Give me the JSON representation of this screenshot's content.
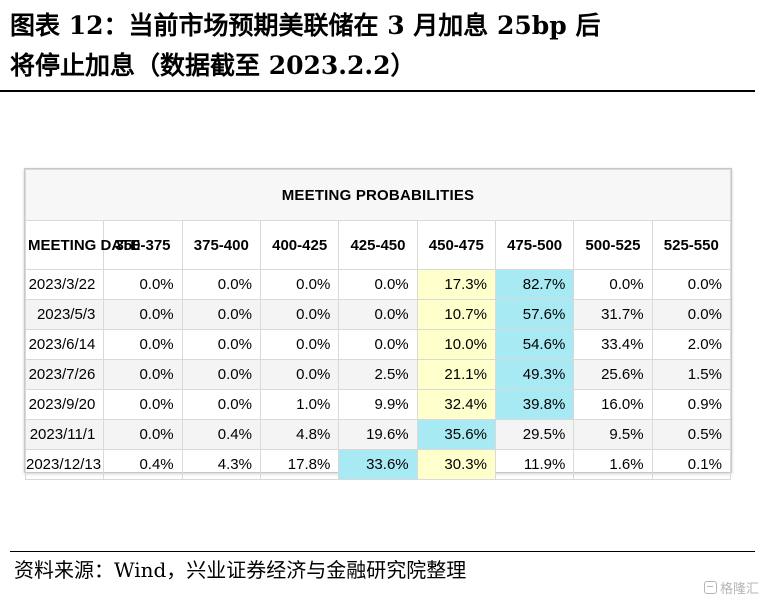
{
  "figure": {
    "title_line1": "图表 12：当前市场预期美联储在 3 月加息 25bp 后",
    "title_line2": "将停止加息（数据截至 2023.2.2）",
    "source": "资料来源：Wind，兴业证券经济与金融研究院整理",
    "watermark": "格隆汇"
  },
  "table": {
    "caption": "MEETING PROBABILITIES",
    "date_header": "MEETING DATE",
    "columns": [
      "350-375",
      "375-400",
      "400-425",
      "425-450",
      "450-475",
      "475-500",
      "500-525",
      "525-550"
    ],
    "rows": [
      {
        "date": "2023/3/22",
        "values": [
          "0.0%",
          "0.0%",
          "0.0%",
          "0.0%",
          "17.3%",
          "82.7%",
          "0.0%",
          "0.0%"
        ],
        "highlight": {
          "yellow": 4,
          "blue": 5
        }
      },
      {
        "date": "2023/5/3",
        "values": [
          "0.0%",
          "0.0%",
          "0.0%",
          "0.0%",
          "10.7%",
          "57.6%",
          "31.7%",
          "0.0%"
        ],
        "highlight": {
          "yellow": 4,
          "blue": 5
        }
      },
      {
        "date": "2023/6/14",
        "values": [
          "0.0%",
          "0.0%",
          "0.0%",
          "0.0%",
          "10.0%",
          "54.6%",
          "33.4%",
          "2.0%"
        ],
        "highlight": {
          "yellow": 4,
          "blue": 5
        }
      },
      {
        "date": "2023/7/26",
        "values": [
          "0.0%",
          "0.0%",
          "0.0%",
          "2.5%",
          "21.1%",
          "49.3%",
          "25.6%",
          "1.5%"
        ],
        "highlight": {
          "yellow": 4,
          "blue": 5
        }
      },
      {
        "date": "2023/9/20",
        "values": [
          "0.0%",
          "0.0%",
          "1.0%",
          "9.9%",
          "32.4%",
          "39.8%",
          "16.0%",
          "0.9%"
        ],
        "highlight": {
          "yellow": 4,
          "blue": 5
        }
      },
      {
        "date": "2023/11/1",
        "values": [
          "0.0%",
          "0.4%",
          "4.8%",
          "19.6%",
          "35.6%",
          "29.5%",
          "9.5%",
          "0.5%"
        ],
        "highlight": {
          "yellow": -1,
          "blue": 4
        }
      },
      {
        "date": "2023/12/13",
        "values": [
          "0.4%",
          "4.3%",
          "17.8%",
          "33.6%",
          "30.3%",
          "11.9%",
          "1.6%",
          "0.1%"
        ],
        "highlight": {
          "yellow": 4,
          "blue": 3
        }
      }
    ]
  },
  "colors": {
    "current_target_highlight": "#ffffcc",
    "max_probability_highlight": "#a8eaf4",
    "alt_row": "#f4f4f4"
  }
}
